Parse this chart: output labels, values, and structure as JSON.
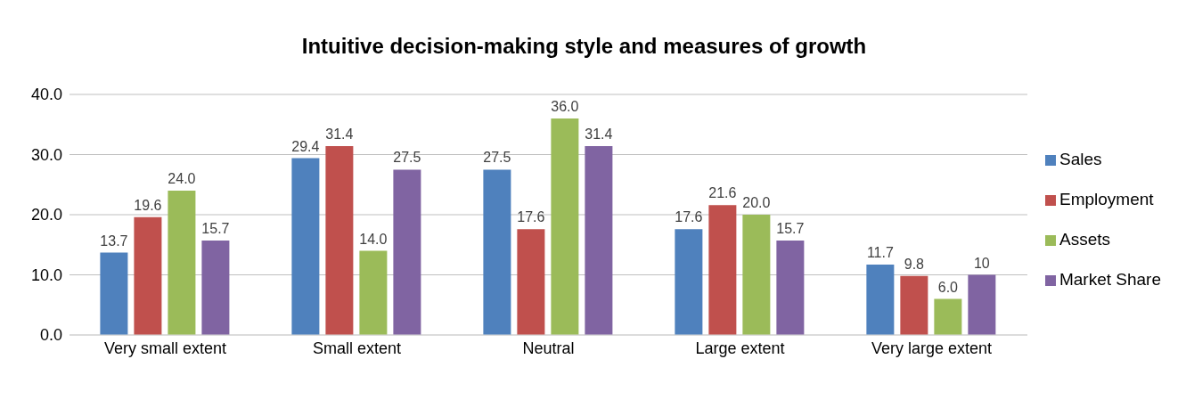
{
  "chart_data": {
    "type": "bar",
    "title": "Intuitive decision-making style and measures of growth",
    "categories": [
      "Very small extent",
      "Small extent",
      "Neutral",
      "Large extent",
      "Very large extent"
    ],
    "series": [
      {
        "name": "Sales",
        "color": "#4f81bd",
        "values": [
          13.7,
          29.4,
          27.5,
          17.6,
          11.7
        ],
        "value_labels": [
          "13.7",
          "29.4",
          "27.5",
          "17.6",
          "11.7"
        ]
      },
      {
        "name": "Employment",
        "color": "#c0504d",
        "values": [
          19.6,
          31.4,
          17.6,
          21.6,
          9.8
        ],
        "value_labels": [
          "19.6",
          "31.4",
          "17.6",
          "21.6",
          "9.8"
        ]
      },
      {
        "name": "Assets",
        "color": "#9bbb59",
        "values": [
          24.0,
          14.0,
          36.0,
          20.0,
          6.0
        ],
        "value_labels": [
          "24.0",
          "14.0",
          "36.0",
          "20.0",
          "6.0"
        ]
      },
      {
        "name": "Market Share",
        "color": "#8064a2",
        "values": [
          15.7,
          27.5,
          31.4,
          15.7,
          10
        ],
        "value_labels": [
          "15.7",
          "27.5",
          "31.4",
          "15.7",
          "10"
        ]
      }
    ],
    "ylim": [
      0,
      40
    ],
    "yticks": [
      {
        "value": 0,
        "label": "0.0"
      },
      {
        "value": 10,
        "label": "10.0"
      },
      {
        "value": 20,
        "label": "20.0"
      },
      {
        "value": 30,
        "label": "30.0"
      },
      {
        "value": 40,
        "label": "40.0"
      }
    ],
    "grid": "y",
    "legend": "right"
  }
}
